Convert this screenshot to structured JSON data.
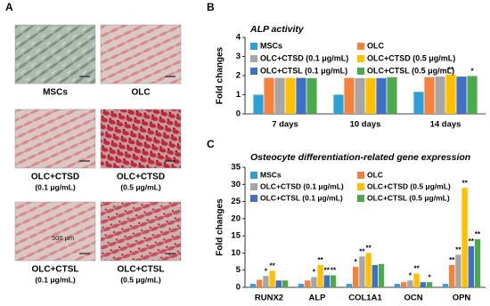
{
  "panel_a": {
    "label": "A",
    "scale_bar": "500 μm",
    "images": [
      {
        "name": "MSCs"
      },
      {
        "name": "OLC"
      },
      {
        "name": "OLC+CTSD",
        "dose": "(0.1 μg/mL)"
      },
      {
        "name": "OLC+CTSD",
        "dose": "(0.5 μg/mL)"
      },
      {
        "name": "OLC+CTSL",
        "dose": "(0.1 μg/mL)"
      },
      {
        "name": "OLC+CTSL",
        "dose": "(0.5 μg/mL)"
      }
    ]
  },
  "chart_data": [
    {
      "type": "bar",
      "panel_label": "B",
      "title": "ALP activity",
      "y_label": "Fold changes",
      "categories": [
        "7 days",
        "10 days",
        "14 days"
      ],
      "ylim": [
        0,
        4
      ],
      "yticks": [
        0,
        1,
        2,
        3,
        4
      ],
      "series": [
        {
          "name": "MSCs",
          "color": "#2f9fd8",
          "values": [
            1,
            1,
            1.15
          ],
          "significance": [
            null,
            null,
            null
          ]
        },
        {
          "name": "OLC",
          "color": "#f4823a",
          "values": [
            1.88,
            1.88,
            1.92
          ],
          "significance": [
            null,
            null,
            null
          ]
        },
        {
          "name": "OLC+CTSD (0.1 μg/mL)",
          "color": "#a6a6a6",
          "values": [
            1.88,
            1.87,
            1.95
          ],
          "significance": [
            null,
            null,
            null
          ]
        },
        {
          "name": "OLC+CTSD (0.5 μg/mL)",
          "color": "#ffc000",
          "values": [
            1.88,
            1.87,
            2.05
          ],
          "significance": [
            null,
            null,
            "**"
          ]
        },
        {
          "name": "OLC+CTSL (0.1 μg/mL)",
          "color": "#3f6fc6",
          "values": [
            1.88,
            1.87,
            1.95
          ],
          "significance": [
            null,
            null,
            null
          ]
        },
        {
          "name": "OLC+CTSL (0.5 μg/mL)",
          "color": "#4caa4c",
          "values": [
            1.87,
            1.92,
            1.98
          ],
          "significance": [
            null,
            null,
            "*"
          ]
        }
      ]
    },
    {
      "type": "bar",
      "panel_label": "C",
      "title": "Osteocyte differentiation-related gene expression",
      "y_label": "Fold changes",
      "categories": [
        "RUNX2",
        "ALP",
        "COL1A1",
        "OCN",
        "OPN"
      ],
      "ylim": [
        0,
        35
      ],
      "yticks": [
        0,
        5,
        10,
        15,
        20,
        25,
        30,
        35
      ],
      "series": [
        {
          "name": "MSCs",
          "color": "#2f9fd8",
          "values": [
            1,
            1,
            1,
            1,
            1
          ],
          "significance": [
            null,
            null,
            null,
            null,
            null
          ]
        },
        {
          "name": "OLC",
          "color": "#f4823a",
          "values": [
            2.2,
            2,
            6,
            1.5,
            6.5
          ],
          "significance": [
            null,
            null,
            "*",
            null,
            "**"
          ]
        },
        {
          "name": "OLC+CTSD (0.1 μg/mL)",
          "color": "#a6a6a6",
          "values": [
            3.3,
            3,
            9,
            2,
            9.5
          ],
          "significance": [
            "*",
            "*",
            "**",
            "*",
            "**"
          ]
        },
        {
          "name": "OLC+CTSD (0.5 μg/mL)",
          "color": "#ffc000",
          "values": [
            4.8,
            6.5,
            10,
            4,
            29
          ],
          "significance": [
            "**",
            "**",
            "**",
            "**",
            "**"
          ]
        },
        {
          "name": "OLC+CTSL (0.1 μg/mL)",
          "color": "#3f6fc6",
          "values": [
            2,
            3.5,
            6.5,
            1.5,
            12
          ],
          "significance": [
            null,
            "**",
            null,
            null,
            "**"
          ]
        },
        {
          "name": "OLC+CTSL (0.5 μg/mL)",
          "color": "#4caa4c",
          "values": [
            2,
            3.5,
            6.8,
            1.5,
            14
          ],
          "significance": [
            null,
            "**",
            null,
            "*",
            "**"
          ]
        }
      ]
    }
  ]
}
